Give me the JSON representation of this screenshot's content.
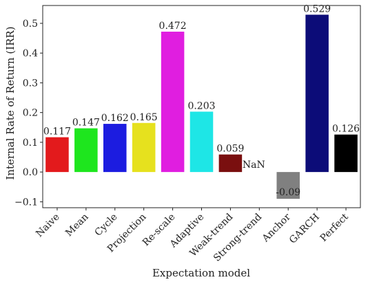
{
  "chart_data": {
    "type": "bar",
    "title": "",
    "xlabel": "Expectation model",
    "ylabel": "Internal Rate of Return (IRR)",
    "ylim": [
      -0.12,
      0.56
    ],
    "yticks": [
      -0.1,
      0.0,
      0.1,
      0.2,
      0.3,
      0.4,
      0.5
    ],
    "ytick_labels": [
      "−0.1",
      "0.0",
      "0.1",
      "0.2",
      "0.3",
      "0.4",
      "0.5"
    ],
    "grid": false,
    "legend": "none",
    "categories": [
      "Naive",
      "Mean",
      "Cycle",
      "Projection",
      "Re-scale",
      "Adaptive",
      "Weak-trend",
      "Strong-trend",
      "Anchor",
      "GARCH",
      "Perfect"
    ],
    "values": [
      0.117,
      0.147,
      0.162,
      0.165,
      0.472,
      0.203,
      0.059,
      null,
      -0.09,
      0.529,
      0.126
    ],
    "value_labels": [
      "0.117",
      "0.147",
      "0.162",
      "0.165",
      "0.472",
      "0.203",
      "0.059",
      "NaN",
      "-0.09",
      "0.529",
      "0.126"
    ],
    "colors": [
      "#e31a1c",
      "#1ee61e",
      "#1c1ce0",
      "#e6e11e",
      "#e01ee0",
      "#1ee6e6",
      "#7a0f0f",
      "#ffffff",
      "#808080",
      "#0c0c78",
      "#000000"
    ]
  }
}
